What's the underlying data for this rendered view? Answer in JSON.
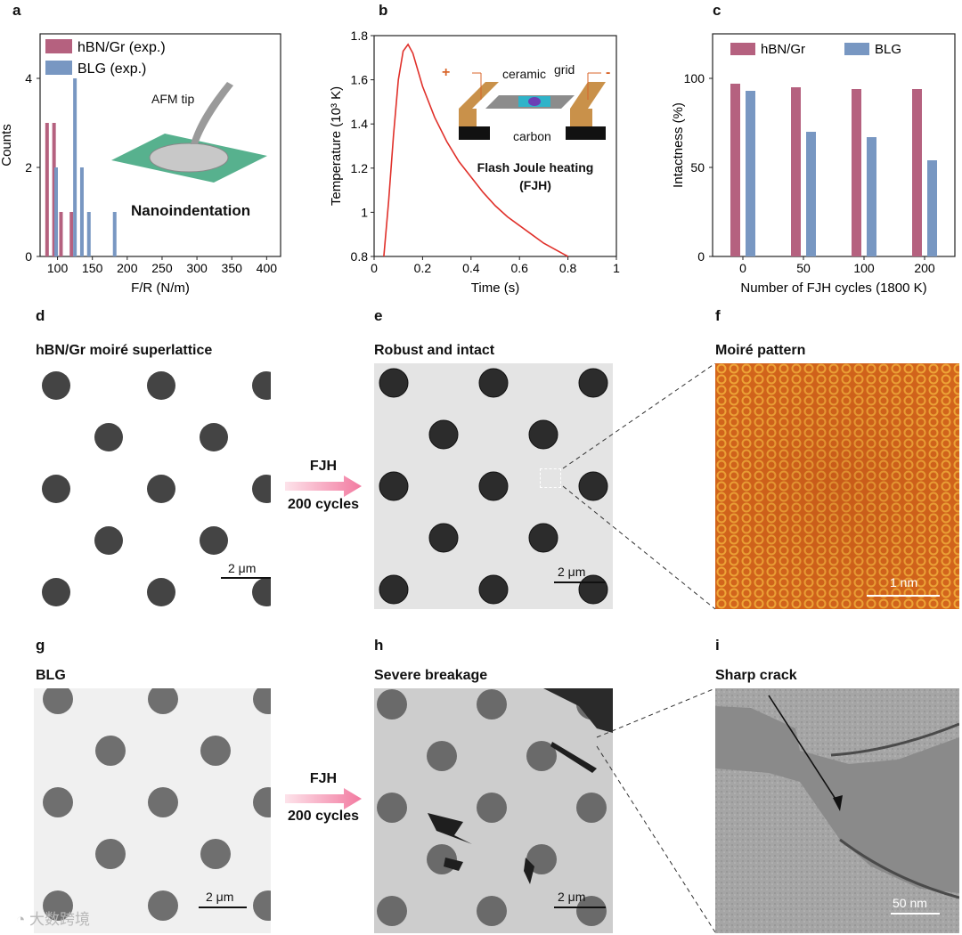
{
  "panels": {
    "a": "a",
    "b": "b",
    "c": "c",
    "d": "d",
    "e": "e",
    "f": "f",
    "g": "g",
    "h": "h",
    "i": "i"
  },
  "panel_a": {
    "legend": [
      "hBN/Gr (exp.)",
      "BLG (exp.)"
    ],
    "inset_tip": "AFM tip",
    "inset_title": "Nanoindentation"
  },
  "panel_b": {
    "inset_plus": "+",
    "inset_minus": "-",
    "inset_ceramic": "ceramic",
    "inset_grid": "grid",
    "inset_carbon": "carbon",
    "caption_line1": "Flash Joule heating",
    "caption_line2": "(FJH)"
  },
  "panel_titles": {
    "d": "hBN/Gr moiré superlattice",
    "e": "Robust and intact",
    "f": "Moiré pattern",
    "g": "BLG",
    "h": "Severe breakage",
    "i": "Sharp crack"
  },
  "arrows": {
    "top_line1": "FJH",
    "top_line2": "200 cycles",
    "bottom_line1": "FJH",
    "bottom_line2": "200 cycles"
  },
  "scalebars": {
    "d": "2 μm",
    "e": "2 μm",
    "f": "1 nm",
    "g": "2 μm",
    "h": "2 μm",
    "i": "50 nm"
  },
  "watermark": "大数跨境",
  "colors": {
    "hbn": "#b5617f",
    "blg": "#7897c2",
    "curve": "#e0302a",
    "moire": "#d9731f"
  },
  "chart_data": [
    {
      "type": "bar",
      "panel": "a",
      "title": "",
      "xlabel": "F_m/R (N/m)",
      "ylabel": "Counts",
      "xlim": [
        75,
        420
      ],
      "ylim": [
        0,
        5
      ],
      "xticks": [
        100,
        150,
        200,
        250,
        300,
        350,
        400
      ],
      "yticks": [
        0,
        2,
        4
      ],
      "series": [
        {
          "name": "hBN/Gr (exp.)",
          "x": [
            85,
            95,
            105,
            120
          ],
          "values": [
            3,
            3,
            1,
            1
          ]
        },
        {
          "name": "BLG (exp.)",
          "x": [
            98,
            125,
            135,
            145,
            182
          ],
          "values": [
            2,
            4,
            2,
            1,
            1
          ]
        }
      ],
      "legend": "top-left"
    },
    {
      "type": "line",
      "panel": "b",
      "title": "",
      "xlabel": "Time (s)",
      "ylabel": "Temperature (10³ K)",
      "xlim": [
        0,
        1
      ],
      "ylim": [
        0.8,
        1.8
      ],
      "xticks": [
        0,
        0.2,
        0.4,
        0.6,
        0.8,
        1
      ],
      "yticks": [
        0.8,
        1,
        1.2,
        1.4,
        1.6,
        1.8
      ],
      "series": [
        {
          "x": [
            0.04,
            0.06,
            0.08,
            0.1,
            0.12,
            0.14,
            0.16,
            0.2,
            0.25,
            0.3,
            0.35,
            0.4,
            0.45,
            0.5,
            0.55,
            0.6,
            0.65,
            0.7,
            0.75,
            0.8
          ],
          "values": [
            0.8,
            1.05,
            1.35,
            1.6,
            1.73,
            1.76,
            1.72,
            1.57,
            1.43,
            1.32,
            1.23,
            1.16,
            1.09,
            1.03,
            0.98,
            0.94,
            0.9,
            0.86,
            0.83,
            0.8
          ]
        }
      ]
    },
    {
      "type": "bar",
      "panel": "c",
      "title": "",
      "xlabel": "Number of FJH cycles (1800 K)",
      "ylabel": "Intactness (%)",
      "ylim": [
        0,
        125
      ],
      "yticks": [
        0,
        50,
        100
      ],
      "categories": [
        "0",
        "50",
        "100",
        "200"
      ],
      "series": [
        {
          "name": "hBN/Gr",
          "values": [
            97,
            95,
            94,
            94
          ]
        },
        {
          "name": "BLG",
          "values": [
            93,
            70,
            67,
            54
          ]
        }
      ],
      "legend": "top"
    }
  ]
}
